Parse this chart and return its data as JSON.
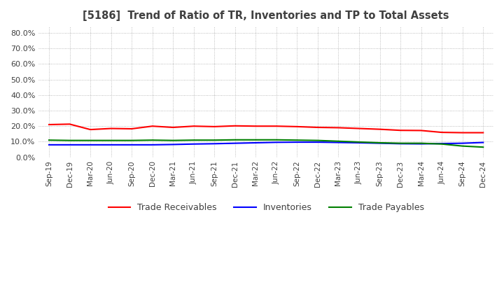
{
  "title": "[5186]  Trend of Ratio of TR, Inventories and TP to Total Assets",
  "x_labels": [
    "Sep-19",
    "Dec-19",
    "Mar-20",
    "Jun-20",
    "Sep-20",
    "Dec-20",
    "Mar-21",
    "Jun-21",
    "Sep-21",
    "Dec-21",
    "Mar-22",
    "Jun-22",
    "Sep-22",
    "Dec-22",
    "Mar-23",
    "Jun-23",
    "Sep-23",
    "Dec-23",
    "Mar-24",
    "Jun-24",
    "Sep-24",
    "Dec-24"
  ],
  "trade_receivables": [
    0.21,
    0.213,
    0.178,
    0.185,
    0.183,
    0.2,
    0.192,
    0.2,
    0.197,
    0.202,
    0.2,
    0.2,
    0.197,
    0.192,
    0.19,
    0.185,
    0.18,
    0.173,
    0.172,
    0.16,
    0.158,
    0.158
  ],
  "inventories": [
    0.08,
    0.08,
    0.08,
    0.08,
    0.08,
    0.08,
    0.082,
    0.085,
    0.087,
    0.09,
    0.093,
    0.096,
    0.097,
    0.097,
    0.095,
    0.093,
    0.09,
    0.087,
    0.086,
    0.088,
    0.09,
    0.095
  ],
  "trade_payables": [
    0.11,
    0.108,
    0.108,
    0.108,
    0.108,
    0.11,
    0.108,
    0.11,
    0.11,
    0.112,
    0.112,
    0.112,
    0.11,
    0.108,
    0.103,
    0.098,
    0.093,
    0.09,
    0.09,
    0.085,
    0.072,
    0.065
  ],
  "ylim": [
    0.0,
    0.84
  ],
  "yticks": [
    0.0,
    0.1,
    0.2,
    0.3,
    0.4,
    0.5,
    0.6,
    0.7,
    0.8
  ],
  "tr_color": "#ff0000",
  "inv_color": "#0000ff",
  "tp_color": "#008000",
  "background_color": "#ffffff",
  "grid_color": "#aaaaaa",
  "title_color": "#404040",
  "legend_labels": [
    "Trade Receivables",
    "Inventories",
    "Trade Payables"
  ]
}
